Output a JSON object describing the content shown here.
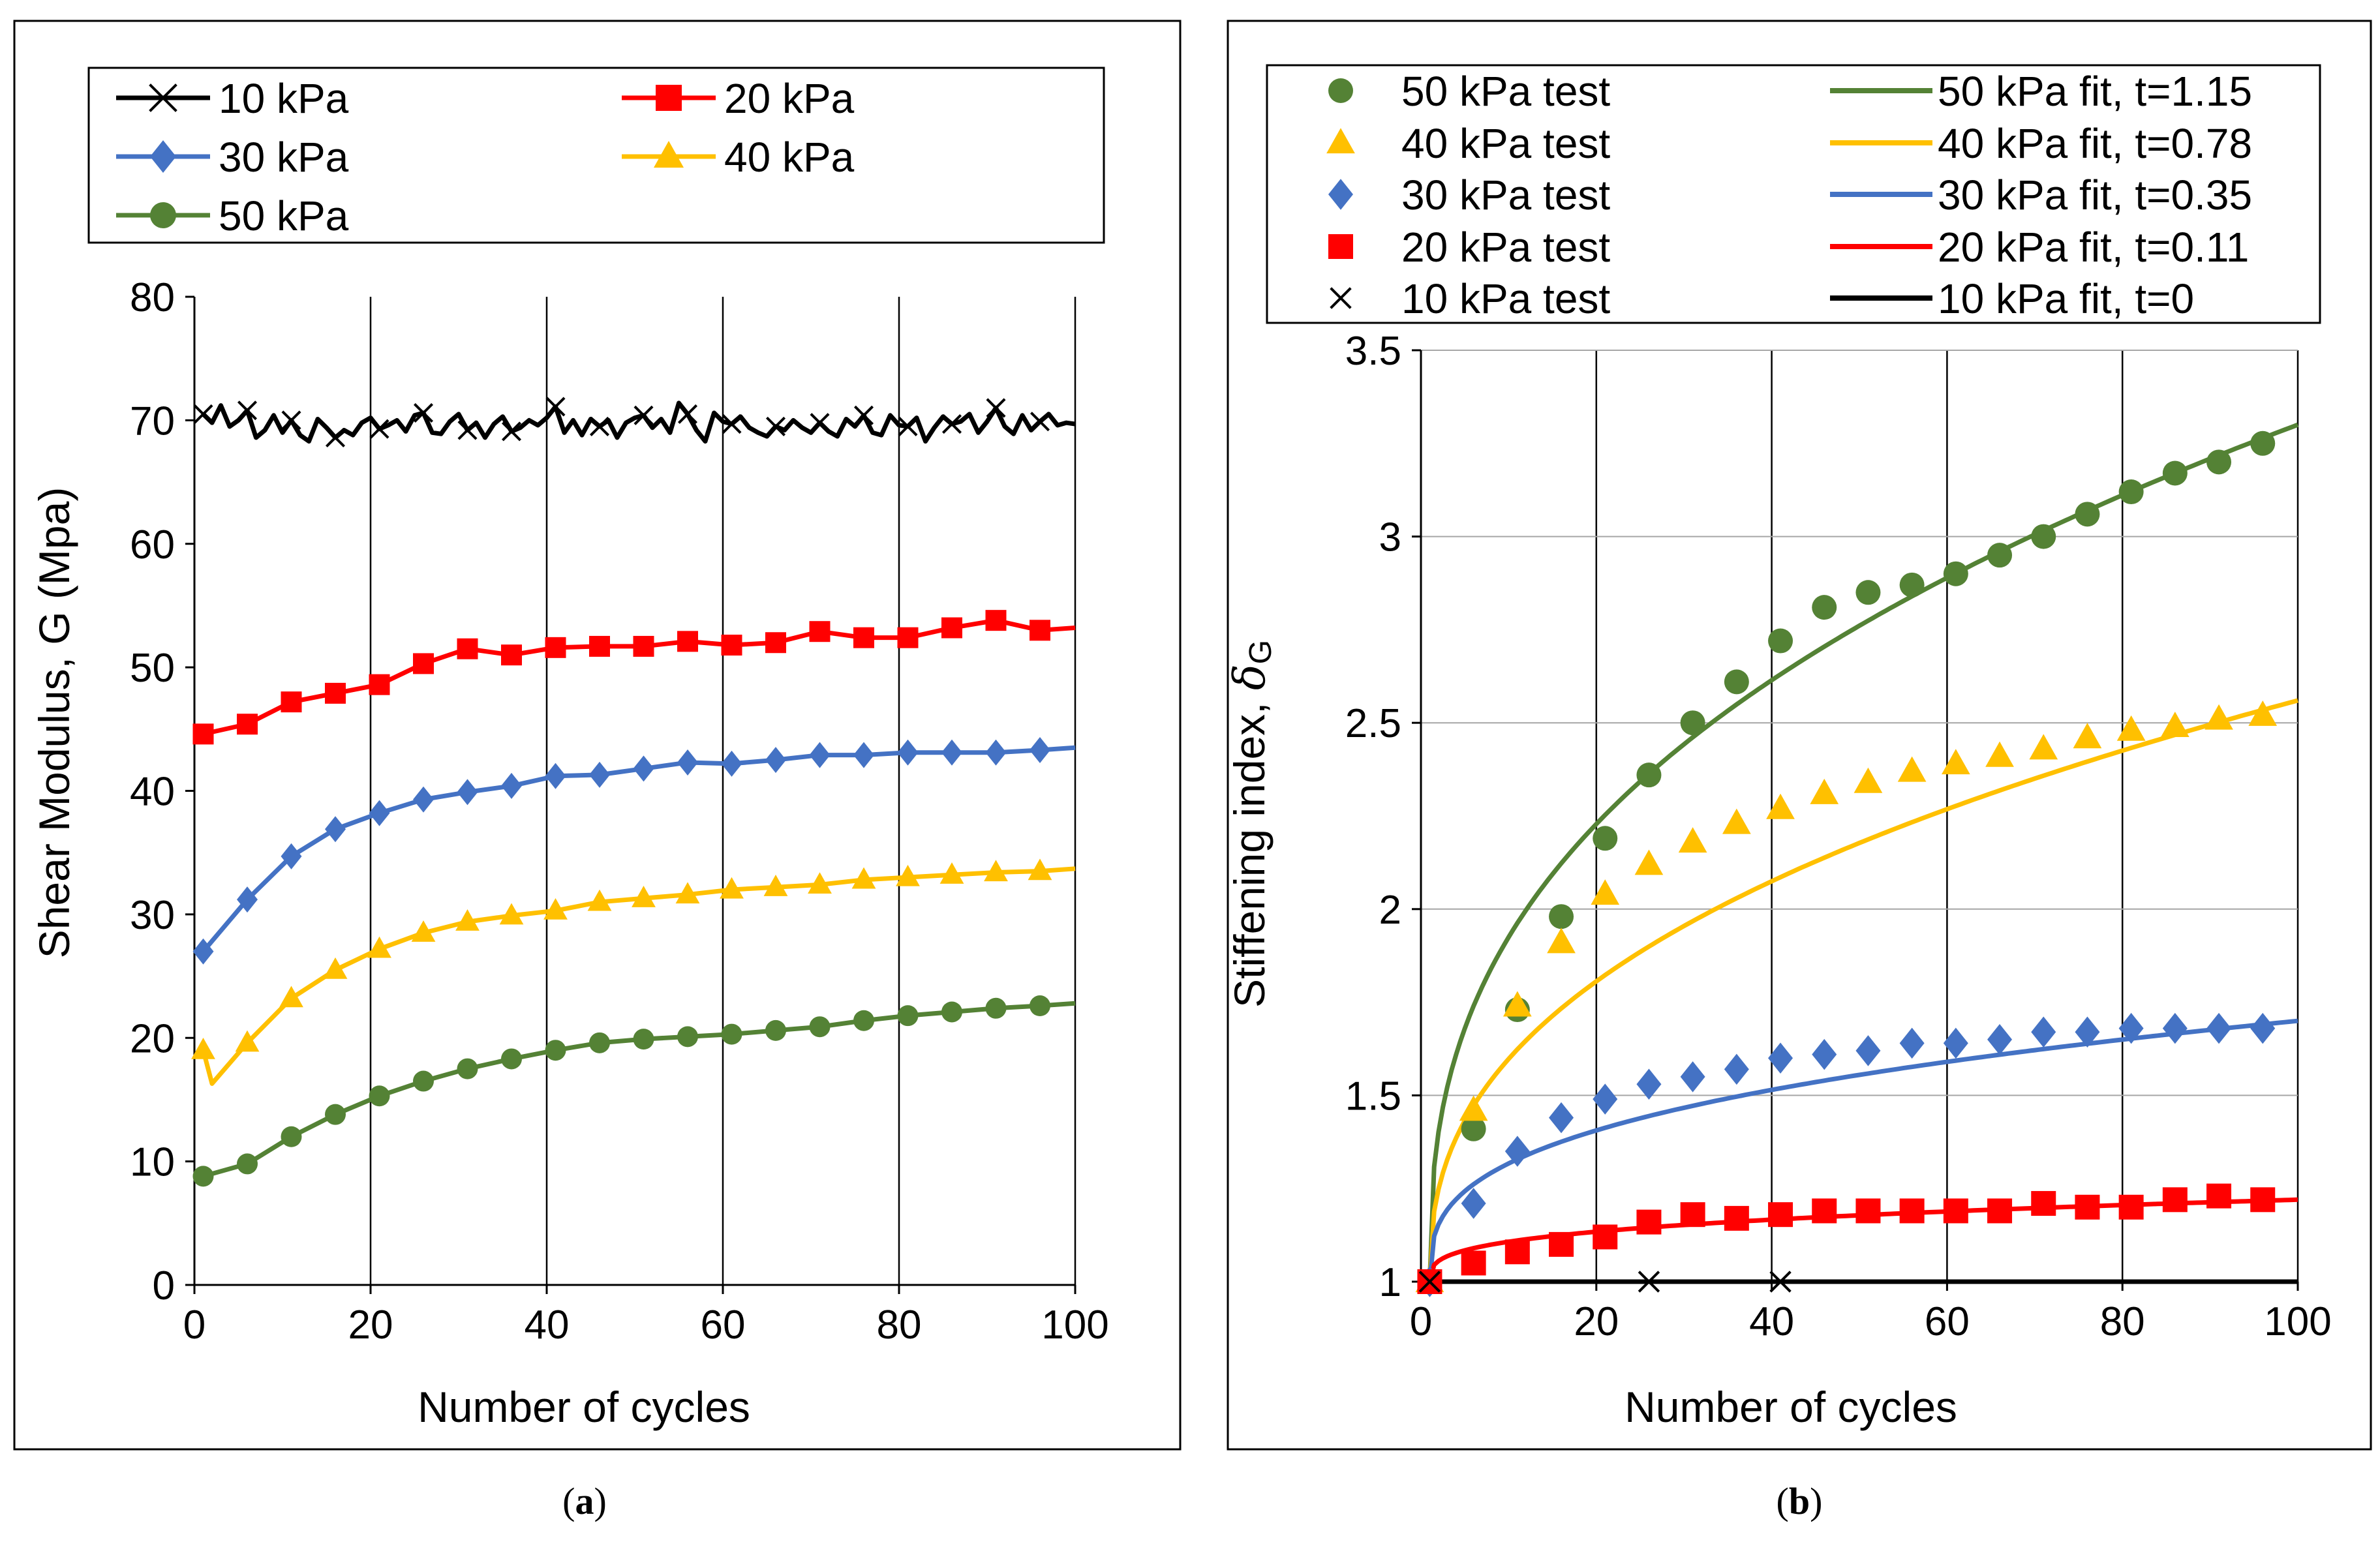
{
  "figure": {
    "label_a": "a",
    "label_b": "b"
  },
  "chart_data": [
    {
      "id": "a",
      "type": "line",
      "xlabel": "Number of cycles",
      "ylabel": "Shear Modulus, G (Mpa)",
      "xlim": [
        0,
        100
      ],
      "ylim": [
        0,
        80
      ],
      "xticks": [
        0,
        20,
        40,
        60,
        80,
        100
      ],
      "yticks": [
        0,
        10,
        20,
        30,
        40,
        50,
        60,
        70,
        80
      ],
      "grid": "vertical",
      "legend_position": "top",
      "series": [
        {
          "name": "10 kPa",
          "color": "#000000",
          "marker": "x",
          "x": [
            1,
            2,
            3,
            4,
            5,
            6,
            7,
            8,
            9,
            10,
            11,
            12,
            13,
            14,
            15,
            16,
            17,
            18,
            19,
            20,
            21,
            22,
            23,
            24,
            25,
            26,
            27,
            28,
            29,
            30,
            31,
            32,
            33,
            34,
            35,
            36,
            37,
            38,
            39,
            40,
            41,
            42,
            43,
            44,
            45,
            46,
            47,
            48,
            49,
            50,
            51,
            52,
            53,
            54,
            55,
            56,
            57,
            58,
            59,
            60,
            61,
            62,
            63,
            64,
            65,
            66,
            67,
            68,
            69,
            70,
            71,
            72,
            73,
            74,
            75,
            76,
            77,
            78,
            79,
            80,
            81,
            82,
            83,
            84,
            85,
            86,
            87,
            88,
            89,
            90,
            91,
            92,
            93,
            94,
            95,
            96,
            97,
            98,
            99,
            100
          ],
          "values": [
            70.5,
            69.8,
            71.2,
            69.5,
            70.0,
            70.8,
            68.6,
            69.2,
            70.4,
            69.0,
            70.0,
            68.8,
            68.3,
            70.1,
            69.4,
            68.6,
            69.2,
            68.8,
            69.8,
            70.2,
            69.3,
            69.6,
            70.0,
            69.1,
            70.4,
            70.6,
            69.0,
            68.9,
            69.9,
            70.5,
            69.2,
            69.8,
            68.6,
            69.7,
            70.3,
            69.1,
            69.4,
            70.0,
            69.6,
            70.2,
            71.1,
            69.0,
            70.0,
            68.8,
            70.1,
            69.5,
            70.0,
            68.6,
            69.8,
            70.2,
            70.4,
            69.4,
            70.1,
            69.0,
            71.4,
            70.5,
            69.2,
            68.3,
            70.6,
            69.9,
            69.7,
            70.3,
            69.4,
            69.0,
            68.7,
            69.5,
            69.2,
            70.0,
            69.4,
            69.0,
            69.8,
            69.1,
            68.7,
            70.1,
            69.5,
            70.4,
            69.0,
            68.8,
            70.4,
            69.6,
            69.5,
            70.2,
            68.3,
            69.4,
            70.3,
            69.7,
            69.9,
            70.5,
            69.0,
            69.9,
            71.0,
            69.5,
            68.9,
            70.4,
            69.2,
            69.9,
            70.5,
            69.6,
            69.8,
            69.7
          ]
        },
        {
          "name": "20 kPa",
          "color": "#ff0000",
          "marker": "square",
          "x": [
            1,
            6,
            11,
            16,
            21,
            26,
            31,
            36,
            41,
            46,
            51,
            56,
            61,
            66,
            71,
            76,
            81,
            86,
            91,
            96
          ],
          "values": [
            44.6,
            45.4,
            47.2,
            47.9,
            48.6,
            50.3,
            51.5,
            51.0,
            51.6,
            51.7,
            51.7,
            52.1,
            51.8,
            52.0,
            52.9,
            52.4,
            52.4,
            53.2,
            53.8,
            53.0
          ]
        },
        {
          "name": "30 kPa",
          "color": "#4472c4",
          "marker": "diamond",
          "x": [
            1,
            6,
            11,
            16,
            21,
            26,
            31,
            36,
            41,
            46,
            51,
            56,
            61,
            66,
            71,
            76,
            81,
            86,
            91,
            96
          ],
          "values": [
            27.0,
            31.2,
            34.7,
            36.9,
            38.2,
            39.3,
            39.9,
            40.4,
            41.2,
            41.3,
            41.8,
            42.3,
            42.2,
            42.5,
            42.9,
            42.9,
            43.1,
            43.1,
            43.1,
            43.3
          ]
        },
        {
          "name": "40 kPa",
          "color": "#ffc000",
          "marker": "triangle",
          "x": [
            1,
            6,
            11,
            16,
            21,
            26,
            31,
            36,
            41,
            46,
            51,
            56,
            61,
            66,
            71,
            76,
            81,
            86,
            91,
            96
          ],
          "values": [
            19.0,
            19.6,
            23.2,
            25.5,
            27.2,
            28.5,
            29.4,
            29.9,
            30.3,
            31.0,
            31.3,
            31.6,
            32.0,
            32.2,
            32.4,
            32.8,
            33.0,
            33.2,
            33.4,
            33.5
          ]
        },
        {
          "name": "50 kPa",
          "color": "#548235",
          "marker": "circle",
          "x": [
            1,
            6,
            11,
            16,
            21,
            26,
            31,
            36,
            41,
            46,
            51,
            56,
            61,
            66,
            71,
            76,
            81,
            86,
            91,
            96
          ],
          "values": [
            8.8,
            9.8,
            12.0,
            13.8,
            15.3,
            16.5,
            17.5,
            18.3,
            19.0,
            19.6,
            19.9,
            20.1,
            20.3,
            20.6,
            20.9,
            21.4,
            21.8,
            22.1,
            22.4,
            22.6
          ]
        }
      ]
    },
    {
      "id": "b",
      "type": "scatter",
      "xlabel": "Number of cycles",
      "ylabel": "Stiffening index, ",
      "ylabel_symbol": "δ",
      "ylabel_subscript": "G",
      "xlim": [
        0,
        100
      ],
      "ylim": [
        1,
        3.5
      ],
      "xticks": [
        0,
        20,
        40,
        60,
        80,
        100
      ],
      "yticks": [
        1,
        1.5,
        2,
        2.5,
        3,
        3.5
      ],
      "ytick_labels": [
        "1",
        "1.5",
        "2",
        "2.5",
        "3",
        "3.5"
      ],
      "grid": "both",
      "legend_position": "top",
      "series": [
        {
          "name": "50 kPa test",
          "color": "#548235",
          "marker": "circle",
          "x": [
            1,
            6,
            11,
            16,
            21,
            26,
            31,
            36,
            41,
            46,
            51,
            56,
            61,
            66,
            71,
            76,
            81,
            86,
            91,
            96
          ],
          "values": [
            1.0,
            1.41,
            1.73,
            1.98,
            2.19,
            2.36,
            2.5,
            2.61,
            2.72,
            2.81,
            2.85,
            2.87,
            2.9,
            2.95,
            3.0,
            3.06,
            3.12,
            3.17,
            3.2,
            3.25
          ]
        },
        {
          "name": "40 kPa test",
          "color": "#ffc000",
          "marker": "triangle",
          "x": [
            1,
            6,
            11,
            16,
            21,
            26,
            31,
            36,
            41,
            46,
            51,
            56,
            61,
            66,
            71,
            76,
            81,
            86,
            91,
            96
          ],
          "values": [
            1.0,
            1.46,
            1.74,
            1.91,
            2.04,
            2.12,
            2.18,
            2.23,
            2.27,
            2.31,
            2.34,
            2.37,
            2.39,
            2.41,
            2.43,
            2.46,
            2.48,
            2.49,
            2.51,
            2.52
          ]
        },
        {
          "name": "30 kPa test",
          "color": "#4472c4",
          "marker": "diamond",
          "x": [
            1,
            6,
            11,
            16,
            21,
            26,
            31,
            36,
            41,
            46,
            51,
            56,
            61,
            66,
            71,
            76,
            81,
            86,
            91,
            96
          ],
          "values": [
            1.0,
            1.21,
            1.35,
            1.44,
            1.49,
            1.53,
            1.55,
            1.57,
            1.6,
            1.61,
            1.62,
            1.64,
            1.64,
            1.65,
            1.67,
            1.67,
            1.68,
            1.68,
            1.68,
            1.68
          ]
        },
        {
          "name": "20 kPa test",
          "color": "#ff0000",
          "marker": "square",
          "x": [
            1,
            6,
            11,
            16,
            21,
            26,
            31,
            36,
            41,
            46,
            51,
            56,
            61,
            66,
            71,
            76,
            81,
            86,
            91,
            96
          ],
          "values": [
            1.0,
            1.05,
            1.08,
            1.1,
            1.12,
            1.16,
            1.18,
            1.17,
            1.18,
            1.19,
            1.19,
            1.19,
            1.19,
            1.19,
            1.21,
            1.2,
            1.2,
            1.22,
            1.23,
            1.22
          ]
        },
        {
          "name": "10 kPa test",
          "color": "#000000",
          "marker": "x",
          "x": [
            1,
            26,
            41
          ],
          "values": [
            1.0,
            1.0,
            1.0
          ]
        }
      ],
      "fits": [
        {
          "name": "50 kPa fit, t=1.15",
          "color": "#548235",
          "t": 1.15,
          "endpoint": [
            100,
            3.3
          ]
        },
        {
          "name": "40 kPa fit, t=0.78",
          "color": "#ffc000",
          "t": 0.78,
          "endpoint": [
            100,
            2.56
          ]
        },
        {
          "name": "30 kPa fit, t=0.35",
          "color": "#4472c4",
          "t": 0.35,
          "endpoint": [
            100,
            1.7
          ]
        },
        {
          "name": "20 kPa fit, t=0.11",
          "color": "#ff0000",
          "t": 0.11,
          "endpoint": [
            100,
            1.22
          ]
        },
        {
          "name": "10 kPa fit, t=0",
          "color": "#000000",
          "t": 0,
          "endpoint": [
            100,
            1.0
          ]
        }
      ]
    }
  ]
}
